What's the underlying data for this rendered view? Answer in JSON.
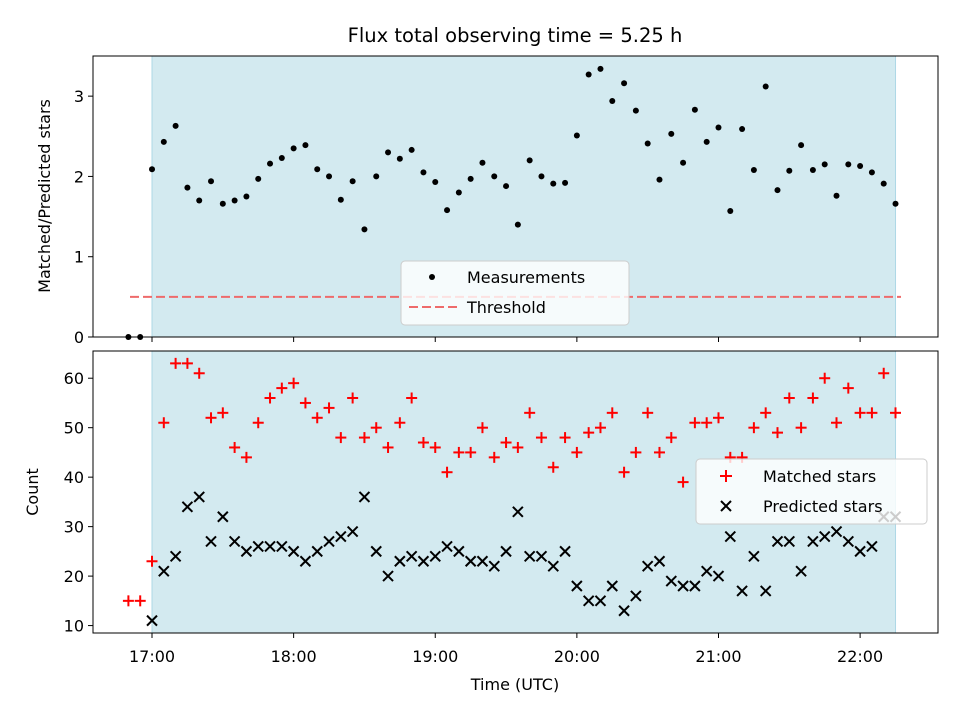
{
  "chart_data": [
    {
      "type": "scatter",
      "title": "Flux total observing time = 5.25 h",
      "xlabel": "",
      "ylabel": "Matched/Predicted stars",
      "ylim": [
        0,
        3.5
      ],
      "yticks": [
        0,
        1,
        2,
        3
      ],
      "xlim": [
        "16:35",
        "22:33"
      ],
      "xticks": [
        "17:00",
        "18:00",
        "19:00",
        "20:00",
        "21:00",
        "22:00"
      ],
      "observing_window": [
        "17:00",
        "22:15"
      ],
      "threshold": 0.5,
      "threshold_color": "#ee6b6b",
      "window_color": "#d3eaf0",
      "legend": {
        "placement": "lower-center",
        "entries": [
          "Measurements",
          "Threshold"
        ]
      },
      "series": [
        {
          "name": "Measurements",
          "color": "#000000",
          "points": [
            [
              "16:50",
              0
            ],
            [
              "16:55",
              0
            ],
            [
              "17:00",
              2.09
            ],
            [
              "17:05",
              2.43
            ],
            [
              "17:10",
              2.63
            ],
            [
              "17:15",
              1.86
            ],
            [
              "17:20",
              1.7
            ],
            [
              "17:25",
              1.94
            ],
            [
              "17:30",
              1.66
            ],
            [
              "17:35",
              1.7
            ],
            [
              "17:40",
              1.75
            ],
            [
              "17:45",
              1.97
            ],
            [
              "17:50",
              2.16
            ],
            [
              "17:55",
              2.23
            ],
            [
              "18:00",
              2.35
            ],
            [
              "18:05",
              2.39
            ],
            [
              "18:10",
              2.09
            ],
            [
              "18:15",
              2.0
            ],
            [
              "18:20",
              1.71
            ],
            [
              "18:25",
              1.94
            ],
            [
              "18:30",
              1.34
            ],
            [
              "18:35",
              2.0
            ],
            [
              "18:40",
              2.3
            ],
            [
              "18:45",
              2.22
            ],
            [
              "18:50",
              2.33
            ],
            [
              "18:55",
              2.05
            ],
            [
              "19:00",
              1.93
            ],
            [
              "19:05",
              1.58
            ],
            [
              "19:10",
              1.8
            ],
            [
              "19:15",
              1.97
            ],
            [
              "19:20",
              2.17
            ],
            [
              "19:25",
              2.0
            ],
            [
              "19:30",
              1.88
            ],
            [
              "19:35",
              1.4
            ],
            [
              "19:40",
              2.2
            ],
            [
              "19:45",
              2.0
            ],
            [
              "19:50",
              1.91
            ],
            [
              "19:55",
              1.92
            ],
            [
              "20:00",
              2.51
            ],
            [
              "20:05",
              3.27
            ],
            [
              "20:10",
              3.34
            ],
            [
              "20:15",
              2.94
            ],
            [
              "20:20",
              3.16
            ],
            [
              "20:25",
              2.82
            ],
            [
              "20:30",
              2.41
            ],
            [
              "20:35",
              1.96
            ],
            [
              "20:40",
              2.53
            ],
            [
              "20:45",
              2.17
            ],
            [
              "20:50",
              2.83
            ],
            [
              "20:55",
              2.43
            ],
            [
              "21:00",
              2.61
            ],
            [
              "21:05",
              1.57
            ],
            [
              "21:10",
              2.59
            ],
            [
              "21:15",
              2.08
            ],
            [
              "21:20",
              3.12
            ],
            [
              "21:25",
              1.83
            ],
            [
              "21:30",
              2.07
            ],
            [
              "21:35",
              2.39
            ],
            [
              "21:40",
              2.08
            ],
            [
              "21:45",
              2.15
            ],
            [
              "21:50",
              1.76
            ],
            [
              "21:55",
              2.15
            ],
            [
              "22:00",
              2.13
            ],
            [
              "22:05",
              2.05
            ],
            [
              "22:10",
              1.91
            ],
            [
              "22:15",
              1.66
            ]
          ]
        }
      ]
    },
    {
      "type": "scatter",
      "title": "",
      "xlabel": "Time (UTC)",
      "ylabel": "Count",
      "ylim": [
        8.5,
        65.5
      ],
      "yticks": [
        10,
        20,
        30,
        40,
        50,
        60
      ],
      "xlim": [
        "16:35",
        "22:33"
      ],
      "xticks": [
        "17:00",
        "18:00",
        "19:00",
        "20:00",
        "21:00",
        "22:00"
      ],
      "observing_window": [
        "17:00",
        "22:15"
      ],
      "window_color": "#d3eaf0",
      "legend": {
        "placement": "center-right",
        "entries": [
          "Matched stars",
          "Predicted stars"
        ]
      },
      "series": [
        {
          "name": "Matched stars",
          "marker": "plus",
          "color": "#ff0000",
          "points": [
            [
              "16:50",
              15
            ],
            [
              "16:55",
              15
            ],
            [
              "17:00",
              23
            ],
            [
              "17:05",
              51
            ],
            [
              "17:10",
              63
            ],
            [
              "17:15",
              63
            ],
            [
              "17:20",
              61
            ],
            [
              "17:25",
              52
            ],
            [
              "17:30",
              53
            ],
            [
              "17:35",
              46
            ],
            [
              "17:40",
              44
            ],
            [
              "17:45",
              51
            ],
            [
              "17:50",
              56
            ],
            [
              "17:55",
              58
            ],
            [
              "18:00",
              59
            ],
            [
              "18:05",
              55
            ],
            [
              "18:10",
              52
            ],
            [
              "18:15",
              54
            ],
            [
              "18:20",
              48
            ],
            [
              "18:25",
              56
            ],
            [
              "18:30",
              48
            ],
            [
              "18:35",
              50
            ],
            [
              "18:40",
              46
            ],
            [
              "18:45",
              51
            ],
            [
              "18:50",
              56
            ],
            [
              "18:55",
              47
            ],
            [
              "19:00",
              46
            ],
            [
              "19:05",
              41
            ],
            [
              "19:10",
              45
            ],
            [
              "19:15",
              45
            ],
            [
              "19:20",
              50
            ],
            [
              "19:25",
              44
            ],
            [
              "19:30",
              47
            ],
            [
              "19:35",
              46
            ],
            [
              "19:40",
              53
            ],
            [
              "19:45",
              48
            ],
            [
              "19:50",
              42
            ],
            [
              "19:55",
              48
            ],
            [
              "20:00",
              45
            ],
            [
              "20:05",
              49
            ],
            [
              "20:10",
              50
            ],
            [
              "20:15",
              53
            ],
            [
              "20:20",
              41
            ],
            [
              "20:25",
              45
            ],
            [
              "20:30",
              53
            ],
            [
              "20:35",
              45
            ],
            [
              "20:40",
              48
            ],
            [
              "20:45",
              39
            ],
            [
              "20:50",
              51
            ],
            [
              "20:55",
              51
            ],
            [
              "21:00",
              52
            ],
            [
              "21:05",
              44
            ],
            [
              "21:10",
              44
            ],
            [
              "21:15",
              50
            ],
            [
              "21:20",
              53
            ],
            [
              "21:25",
              49
            ],
            [
              "21:30",
              56
            ],
            [
              "21:35",
              50
            ],
            [
              "21:40",
              56
            ],
            [
              "21:45",
              60
            ],
            [
              "21:50",
              51
            ],
            [
              "21:55",
              58
            ],
            [
              "22:00",
              53
            ],
            [
              "22:05",
              53
            ],
            [
              "22:10",
              61
            ],
            [
              "22:15",
              53
            ]
          ]
        },
        {
          "name": "Predicted stars",
          "marker": "x",
          "color": "#000000",
          "points": [
            [
              "17:00",
              11
            ],
            [
              "17:05",
              21
            ],
            [
              "17:10",
              24
            ],
            [
              "17:15",
              34
            ],
            [
              "17:20",
              36
            ],
            [
              "17:25",
              27
            ],
            [
              "17:30",
              32
            ],
            [
              "17:35",
              27
            ],
            [
              "17:40",
              25
            ],
            [
              "17:45",
              26
            ],
            [
              "17:50",
              26
            ],
            [
              "17:55",
              26
            ],
            [
              "18:00",
              25
            ],
            [
              "18:05",
              23
            ],
            [
              "18:10",
              25
            ],
            [
              "18:15",
              27
            ],
            [
              "18:20",
              28
            ],
            [
              "18:25",
              29
            ],
            [
              "18:30",
              36
            ],
            [
              "18:35",
              25
            ],
            [
              "18:40",
              20
            ],
            [
              "18:45",
              23
            ],
            [
              "18:50",
              24
            ],
            [
              "18:55",
              23
            ],
            [
              "19:00",
              24
            ],
            [
              "19:05",
              26
            ],
            [
              "19:10",
              25
            ],
            [
              "19:15",
              23
            ],
            [
              "19:20",
              23
            ],
            [
              "19:25",
              22
            ],
            [
              "19:30",
              25
            ],
            [
              "19:35",
              33
            ],
            [
              "19:40",
              24
            ],
            [
              "19:45",
              24
            ],
            [
              "19:50",
              22
            ],
            [
              "19:55",
              25
            ],
            [
              "20:00",
              18
            ],
            [
              "20:05",
              15
            ],
            [
              "20:10",
              15
            ],
            [
              "20:15",
              18
            ],
            [
              "20:20",
              13
            ],
            [
              "20:25",
              16
            ],
            [
              "20:30",
              22
            ],
            [
              "20:35",
              23
            ],
            [
              "20:40",
              19
            ],
            [
              "20:45",
              18
            ],
            [
              "20:50",
              18
            ],
            [
              "20:55",
              21
            ],
            [
              "21:00",
              20
            ],
            [
              "21:05",
              28
            ],
            [
              "21:10",
              17
            ],
            [
              "21:15",
              24
            ],
            [
              "21:20",
              17
            ],
            [
              "21:25",
              27
            ],
            [
              "21:30",
              27
            ],
            [
              "21:35",
              21
            ],
            [
              "21:40",
              27
            ],
            [
              "21:45",
              28
            ],
            [
              "21:50",
              29
            ],
            [
              "21:55",
              27
            ],
            [
              "22:00",
              25
            ],
            [
              "22:05",
              26
            ],
            [
              "22:10",
              32
            ],
            [
              "22:15",
              32
            ]
          ]
        }
      ]
    }
  ]
}
